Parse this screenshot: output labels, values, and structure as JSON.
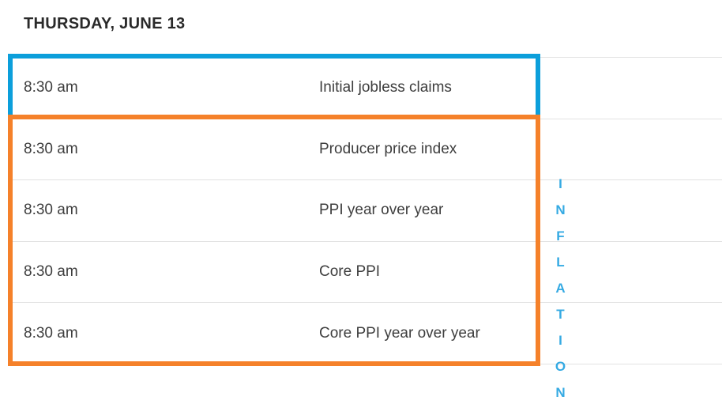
{
  "page": {
    "title": "THURSDAY, JUNE 13"
  },
  "calendar": {
    "rows": [
      {
        "time": "8:30 am",
        "event": "Initial jobless claims"
      },
      {
        "time": "8:30 am",
        "event": "Producer price index"
      },
      {
        "time": "8:30 am",
        "event": "PPI year over year"
      },
      {
        "time": "8:30 am",
        "event": "Core PPI"
      },
      {
        "time": "8:30 am",
        "event": "Core PPI year over year"
      }
    ]
  },
  "annotations": {
    "blue_highlight": {
      "rows": [
        0
      ],
      "color": "#0c9fdb"
    },
    "orange_highlight": {
      "rows": [
        1,
        2,
        3,
        4
      ],
      "color": "#f5812a"
    },
    "vertical_label": {
      "text": "INFLATION",
      "color": "#35aae3"
    }
  },
  "colors": {
    "row_divider": "#e2e2e2",
    "title_text": "#2a2a2a",
    "body_text": "#3e3e3e",
    "background": "#ffffff"
  }
}
